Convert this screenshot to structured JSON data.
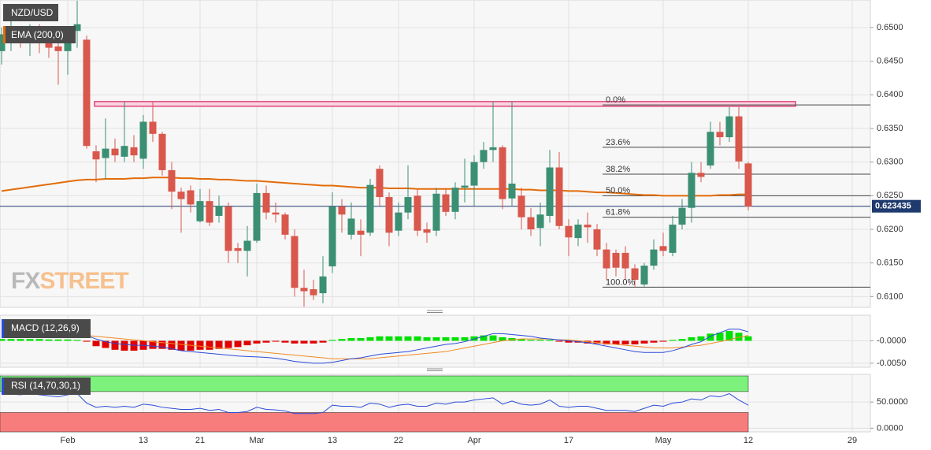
{
  "chart_data": [
    {
      "type": "candlestick",
      "title": "NZD/USD",
      "categories": [
        null,
        null,
        null,
        null,
        null,
        null,
        null,
        "Feb",
        null,
        null,
        null,
        null,
        null,
        null,
        null,
        "13",
        null,
        null,
        null,
        null,
        null,
        "21",
        null,
        null,
        null,
        null,
        null,
        "Mar",
        null,
        null,
        null,
        null,
        null,
        null,
        null,
        "13",
        null,
        null,
        null,
        null,
        null,
        null,
        "22",
        null,
        null,
        null,
        null,
        null,
        null,
        null,
        "Apr",
        null,
        null,
        null,
        null,
        null,
        null,
        null,
        null,
        null,
        "17",
        null,
        null,
        null,
        null,
        null,
        null,
        null,
        null,
        null,
        "May",
        null,
        null,
        null,
        null,
        null,
        null,
        null,
        null,
        "12",
        null,
        null,
        null,
        null,
        null,
        null,
        null,
        null,
        null,
        null,
        "29",
        null,
        null
      ],
      "open": [
        0.6465,
        0.6478,
        0.649,
        0.648,
        0.649,
        0.648,
        0.6472,
        0.6465,
        0.6495,
        0.6482,
        0.6316,
        0.6306,
        0.632,
        0.6308,
        0.6322,
        0.6305,
        0.636,
        0.6342,
        0.6288,
        0.6256,
        0.6258,
        0.6212,
        0.6242,
        0.622,
        0.6234,
        0.6172,
        0.6168,
        0.6183,
        0.6254,
        0.6225,
        0.6222,
        0.619,
        0.6113,
        0.6111,
        0.6105,
        0.6145,
        0.6234,
        0.6192,
        0.6198,
        0.6195,
        0.629,
        0.6248,
        0.6198,
        0.6225,
        0.625,
        0.62,
        0.6198,
        0.6252,
        0.6226,
        0.6262,
        0.6265,
        0.63,
        0.6318,
        0.6322,
        0.6246,
        0.625,
        0.6218,
        0.6202,
        0.622,
        0.6292,
        0.6205,
        0.6187,
        0.6207,
        0.62,
        0.617,
        0.6165,
        0.6165,
        0.6142,
        0.6118,
        0.6146,
        0.6175,
        0.6165,
        0.6207,
        0.6232,
        0.6284,
        0.6295,
        0.6345,
        0.6337,
        0.6368,
        0.6298,
        null,
        null,
        null,
        null,
        null,
        null,
        null,
        null,
        null,
        null,
        null,
        null,
        null
      ],
      "high": [
        0.65,
        0.651,
        0.65,
        0.6505,
        0.6505,
        0.6495,
        0.649,
        0.65,
        0.654,
        0.6488,
        0.6325,
        0.6365,
        0.6335,
        0.639,
        0.634,
        0.637,
        0.639,
        0.6345,
        0.63,
        0.6262,
        0.6265,
        0.626,
        0.626,
        0.625,
        0.624,
        0.618,
        0.6205,
        0.6268,
        0.6265,
        0.624,
        0.6225,
        0.62,
        0.614,
        0.6125,
        0.616,
        0.6255,
        0.6245,
        0.624,
        0.6215,
        0.6275,
        0.6295,
        0.6255,
        0.624,
        0.6295,
        0.626,
        0.621,
        0.6262,
        0.626,
        0.627,
        0.6305,
        0.631,
        0.633,
        0.639,
        0.6325,
        0.639,
        0.6262,
        0.6232,
        0.624,
        0.6318,
        0.6315,
        0.6215,
        0.6215,
        0.6225,
        0.6208,
        0.618,
        0.617,
        0.6175,
        0.6148,
        0.615,
        0.6185,
        0.6195,
        0.622,
        0.6245,
        0.63,
        0.63,
        0.636,
        0.636,
        0.6382,
        0.6382,
        0.63,
        null,
        null,
        null,
        null,
        null,
        null,
        null,
        null,
        null,
        null,
        null,
        null,
        null
      ],
      "low": [
        0.6445,
        0.6465,
        0.647,
        0.6458,
        0.6462,
        0.6455,
        0.6415,
        0.643,
        0.647,
        0.632,
        0.627,
        0.6275,
        0.63,
        0.63,
        0.63,
        0.629,
        0.633,
        0.628,
        0.623,
        0.6195,
        0.6225,
        0.621,
        0.6205,
        0.621,
        0.615,
        0.615,
        0.613,
        0.618,
        0.6215,
        0.621,
        0.6185,
        0.61,
        0.6085,
        0.6095,
        0.609,
        0.6135,
        0.6195,
        0.6185,
        0.616,
        0.619,
        0.6235,
        0.6175,
        0.619,
        0.6215,
        0.619,
        0.618,
        0.619,
        0.622,
        0.6215,
        0.624,
        0.6235,
        0.629,
        0.63,
        0.623,
        0.6235,
        0.62,
        0.619,
        0.6175,
        0.621,
        0.62,
        0.616,
        0.6175,
        0.618,
        0.616,
        0.6125,
        0.613,
        0.6125,
        0.6115,
        0.6115,
        0.614,
        0.616,
        0.616,
        0.62,
        0.621,
        0.627,
        0.629,
        0.6325,
        0.633,
        0.629,
        0.6228,
        null,
        null,
        null,
        null,
        null,
        null,
        null,
        null,
        null,
        null,
        null,
        null,
        null
      ],
      "close": [
        0.649,
        0.649,
        0.6482,
        0.649,
        0.648,
        0.647,
        0.6465,
        0.6495,
        0.6505,
        0.6324,
        0.6304,
        0.632,
        0.631,
        0.6324,
        0.631,
        0.636,
        0.6342,
        0.6288,
        0.6256,
        0.6245,
        0.6237,
        0.6242,
        0.621,
        0.6235,
        0.6168,
        0.6168,
        0.6183,
        0.6254,
        0.6225,
        0.6222,
        0.6192,
        0.6113,
        0.6108,
        0.6102,
        0.613,
        0.6234,
        0.6222,
        0.6216,
        0.6192,
        0.6266,
        0.6248,
        0.6195,
        0.6225,
        0.6248,
        0.6198,
        0.6195,
        0.6253,
        0.6226,
        0.6262,
        0.6265,
        0.63,
        0.6318,
        0.6322,
        0.6245,
        0.6268,
        0.6218,
        0.62,
        0.6222,
        0.6292,
        0.6205,
        0.6188,
        0.6207,
        0.6203,
        0.617,
        0.6142,
        0.6143,
        0.6142,
        0.6125,
        0.6146,
        0.617,
        0.6168,
        0.6207,
        0.6232,
        0.6284,
        0.6278,
        0.6345,
        0.6337,
        0.6368,
        0.6301,
        0.6234,
        null,
        null,
        null,
        null,
        null,
        null,
        null,
        null,
        null,
        null,
        null,
        null,
        null
      ],
      "up_color": "#3b8f73",
      "down_color": "#d9574b",
      "series": [
        {
          "name": "EMA (200,0)",
          "color": "#e36c0a",
          "values": [
            0.6257,
            0.6259,
            0.6261,
            0.6263,
            0.6265,
            0.6267,
            0.6269,
            0.6271,
            0.6273,
            0.6274,
            0.6274,
            0.6275,
            0.6275,
            0.6275,
            0.6276,
            0.6276,
            0.6277,
            0.6277,
            0.6277,
            0.6276,
            0.6276,
            0.6275,
            0.6275,
            0.6274,
            0.6274,
            0.6273,
            0.6272,
            0.6272,
            0.6271,
            0.627,
            0.6269,
            0.6268,
            0.6267,
            0.6266,
            0.6265,
            0.6265,
            0.6264,
            0.6263,
            0.6262,
            0.6262,
            0.6262,
            0.6261,
            0.6261,
            0.6261,
            0.626,
            0.626,
            0.626,
            0.626,
            0.626,
            0.626,
            0.626,
            0.626,
            0.626,
            0.626,
            0.626,
            0.6259,
            0.6259,
            0.6258,
            0.6258,
            0.6258,
            0.6257,
            0.6257,
            0.6256,
            0.6255,
            0.6255,
            0.6254,
            0.6253,
            0.6252,
            0.6251,
            0.6251,
            0.625,
            0.625,
            0.625,
            0.625,
            0.625,
            0.625,
            0.6251,
            0.6251,
            0.6252,
            0.6252,
            null,
            null,
            null,
            null,
            null,
            null,
            null,
            null,
            null,
            null,
            null,
            null,
            null
          ]
        }
      ],
      "last_price": 0.623435,
      "last_price_color": "#1f3a6e",
      "fibonacci": [
        {
          "label": "0.0%",
          "value": 0.6385
        },
        {
          "label": "23.6%",
          "value": 0.6322
        },
        {
          "label": "38.2%",
          "value": 0.6282
        },
        {
          "label": "50.0%",
          "value": 0.625
        },
        {
          "label": "61.8%",
          "value": 0.6218
        },
        {
          "label": "100.0%",
          "value": 0.6114
        }
      ],
      "resistance_zone": [
        0.6383,
        0.639
      ],
      "resistance_color": "#e0457b",
      "watermark": [
        "FX",
        "STREET"
      ],
      "ylim": [
        0.6084,
        0.6541
      ],
      "yticks": [
        {
          "value": 0.61,
          "label": "0.6100"
        },
        {
          "value": 0.615,
          "label": "0.6150"
        },
        {
          "value": 0.62,
          "label": "0.6200"
        },
        {
          "value": 0.625,
          "label": "0.6250"
        },
        {
          "value": 0.63,
          "label": "0.6300"
        },
        {
          "value": 0.635,
          "label": "0.6350"
        },
        {
          "value": 0.64,
          "label": "0.6400"
        },
        {
          "value": 0.645,
          "label": "0.6450"
        },
        {
          "value": 0.65,
          "label": "0.6500"
        }
      ],
      "grid": true
    },
    {
      "type": "macd",
      "title": "MACD (12,26,9)",
      "histogram": {
        "up_color": "#00e000",
        "down_color": "#e00000",
        "values": [
          0.0004,
          0.0004,
          0.0004,
          0.0004,
          0.0004,
          0.0003,
          0.0003,
          0.0003,
          0.0002,
          -0.0002,
          -0.0012,
          -0.0016,
          -0.002,
          -0.0022,
          -0.0022,
          -0.002,
          -0.0018,
          -0.0018,
          -0.002,
          -0.0022,
          -0.0022,
          -0.002,
          -0.002,
          -0.0018,
          -0.0016,
          -0.0014,
          -0.001,
          -0.0006,
          -0.0004,
          -0.0002,
          -0.0004,
          -0.0006,
          -0.0006,
          -0.0006,
          -0.0004,
          0.0002,
          0.0004,
          0.0006,
          0.0006,
          0.0008,
          0.001,
          0.001,
          0.001,
          0.001,
          0.001,
          0.0008,
          0.0008,
          0.0008,
          0.0008,
          0.0008,
          0.001,
          0.0012,
          0.0012,
          0.0008,
          0.0006,
          0.0004,
          0.0002,
          0.0002,
          0.0002,
          -0.0002,
          -0.0004,
          -0.0004,
          -0.0006,
          -0.0006,
          -0.0008,
          -0.0008,
          -0.0008,
          -0.0008,
          -0.0006,
          -0.0004,
          -0.0002,
          0.0002,
          0.0004,
          0.0008,
          0.001,
          0.0016,
          0.0018,
          0.0022,
          0.0018,
          0.001,
          null,
          null,
          null,
          null,
          null,
          null,
          null,
          null,
          null,
          null,
          null,
          null,
          null
        ]
      },
      "macd": {
        "color": "#2a4bd7",
        "values": [
          0.0014,
          0.0014,
          0.0015,
          0.0015,
          0.0015,
          0.0014,
          0.0014,
          0.0014,
          0.0015,
          0.0012,
          0.0004,
          -0.0002,
          -0.0006,
          -0.0008,
          -0.001,
          -0.001,
          -0.0012,
          -0.0014,
          -0.0018,
          -0.0022,
          -0.0024,
          -0.0026,
          -0.0028,
          -0.003,
          -0.0032,
          -0.0034,
          -0.0035,
          -0.0036,
          -0.0037,
          -0.0039,
          -0.0042,
          -0.0046,
          -0.0048,
          -0.005,
          -0.005,
          -0.0048,
          -0.0044,
          -0.004,
          -0.0038,
          -0.0034,
          -0.003,
          -0.0028,
          -0.0026,
          -0.0024,
          -0.002,
          -0.0016,
          -0.0012,
          -0.0008,
          -0.0006,
          -0.0002,
          0.0004,
          0.001,
          0.0016,
          0.0016,
          0.0014,
          0.0012,
          0.001,
          0.0006,
          0.0004,
          0.0002,
          0.0,
          -0.0002,
          -0.0004,
          -0.0008,
          -0.0012,
          -0.0016,
          -0.002,
          -0.0024,
          -0.0026,
          -0.0026,
          -0.0026,
          -0.0022,
          -0.0016,
          -0.0008,
          -0.0002,
          0.001,
          0.0018,
          0.0026,
          0.0026,
          0.002,
          null,
          null,
          null,
          null,
          null,
          null,
          null,
          null,
          null,
          null,
          null,
          null,
          null
        ]
      },
      "signal": {
        "color": "#f08a24",
        "values": [
          0.003,
          0.0028,
          0.0026,
          0.0024,
          0.0022,
          0.002,
          0.0018,
          0.0016,
          0.0014,
          0.0012,
          0.001,
          0.0008,
          0.0006,
          0.0004,
          0.0002,
          0.0,
          -0.0002,
          -0.0004,
          -0.0006,
          -0.0008,
          -0.001,
          -0.0012,
          -0.0014,
          -0.0016,
          -0.0018,
          -0.002,
          -0.0022,
          -0.0024,
          -0.0026,
          -0.0028,
          -0.003,
          -0.0032,
          -0.0034,
          -0.0036,
          -0.0038,
          -0.004,
          -0.004,
          -0.004,
          -0.004,
          -0.004,
          -0.0038,
          -0.0036,
          -0.0034,
          -0.0032,
          -0.003,
          -0.0028,
          -0.0026,
          -0.0024,
          -0.002,
          -0.0016,
          -0.0012,
          -0.0008,
          -0.0004,
          0.0,
          0.0002,
          0.0004,
          0.0004,
          0.0004,
          0.0004,
          0.0002,
          0.0002,
          0.0,
          -0.0002,
          -0.0004,
          -0.0006,
          -0.0008,
          -0.001,
          -0.0012,
          -0.0014,
          -0.0016,
          -0.0016,
          -0.0016,
          -0.0014,
          -0.0012,
          -0.001,
          -0.0006,
          -0.0002,
          0.0002,
          0.0008,
          0.0012,
          null,
          null,
          null,
          null,
          null,
          null,
          null,
          null,
          null,
          null,
          null,
          null,
          null
        ]
      },
      "ylim": [
        -0.0059,
        0.0057
      ],
      "yticks": [
        {
          "value": -0.005,
          "label": "-0.0050"
        },
        {
          "value": 0,
          "label": "-0.0000"
        }
      ],
      "grid": true
    },
    {
      "type": "rsi",
      "title": "RSI (14,70,30,1)",
      "values": [
        66,
        65,
        64,
        66,
        64,
        62,
        60,
        64,
        66,
        48,
        40,
        42,
        40,
        42,
        40,
        46,
        44,
        40,
        38,
        36,
        36,
        38,
        34,
        36,
        30,
        30,
        32,
        40,
        36,
        35,
        33,
        28,
        28,
        28,
        30,
        44,
        42,
        42,
        40,
        48,
        46,
        40,
        44,
        46,
        42,
        42,
        48,
        46,
        50,
        50,
        54,
        56,
        58,
        46,
        52,
        46,
        44,
        46,
        54,
        42,
        40,
        42,
        42,
        38,
        34,
        34,
        34,
        32,
        38,
        44,
        42,
        48,
        50,
        56,
        54,
        62,
        60,
        66,
        54,
        44,
        null,
        null,
        null,
        null,
        null,
        null,
        null,
        null,
        null,
        null,
        null,
        null,
        null
      ],
      "color": "#2a4bd7",
      "overbought": 70,
      "overbought_color": "#7cf27c",
      "oversold": 30,
      "oversold_color": "#f77d7d",
      "ylim": [
        -7,
        103
      ],
      "yticks": [
        {
          "value": 0,
          "label": "0.0000"
        },
        {
          "value": 50,
          "label": "50.0000"
        }
      ],
      "grid": true
    }
  ]
}
